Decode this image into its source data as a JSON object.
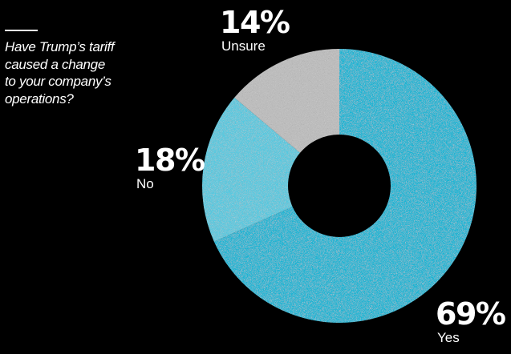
{
  "question": {
    "lines": [
      "Have Trump’s tariff",
      "caused a change",
      "to your company’s",
      "operations?"
    ]
  },
  "chart_data": {
    "type": "pie",
    "donut": true,
    "slices": [
      {
        "label": "Yes",
        "value": 69,
        "display": "69%",
        "color": "#1cb5d4"
      },
      {
        "label": "No",
        "value": 18,
        "display": "18%",
        "color": "#55c9e0"
      },
      {
        "label": "Unsure",
        "value": 14,
        "display": "14%",
        "color": "#bdbdbd"
      }
    ],
    "start_angle_deg": 0,
    "direction": "clockwise"
  }
}
